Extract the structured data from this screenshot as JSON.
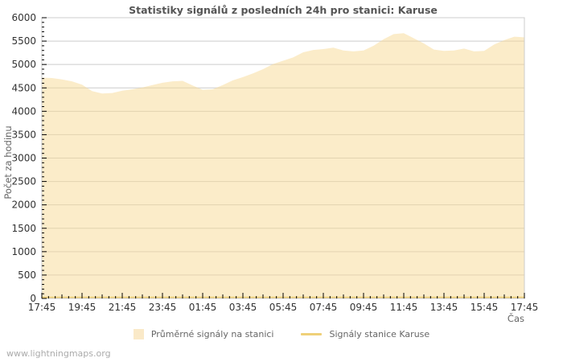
{
  "page": {
    "title": "Statistiky signálů z posledních 24h pro stanici: Karuse",
    "watermark": "www.lightningmaps.org"
  },
  "legend": {
    "items": [
      {
        "label": "Průměrné signály na stanici",
        "swatch": "area-square",
        "color": "#FAE9C8"
      },
      {
        "label": "Signály stanice Karuse",
        "swatch": "line",
        "color": "#EFD079"
      }
    ]
  },
  "chart_data": {
    "type": "area",
    "title": "Statistiky signálů z posledních 24h pro stanici: Karuse",
    "xlabel": "Čas",
    "ylabel": "Počet za hodinu",
    "ylim": [
      0,
      6000
    ],
    "y_tick_step": 500,
    "y_minor_step": 100,
    "y_tick_labels": [
      "0",
      "500",
      "1000",
      "1500",
      "2000",
      "2500",
      "3000",
      "3500",
      "4000",
      "4500",
      "5000",
      "5500",
      "6000"
    ],
    "x_hours_span": 24,
    "x_label_every_hours": 2,
    "x_minor_ticks_per_hour": 3,
    "x_tick_labels": [
      "17:45",
      "19:45",
      "21:45",
      "23:45",
      "01:45",
      "03:45",
      "05:45",
      "07:45",
      "09:45",
      "11:45",
      "13:45",
      "15:45",
      "17:45"
    ],
    "grid": true,
    "legend_position": "bottom",
    "x_step_hours": 0.5,
    "series": [
      {
        "name": "Průměrné signály na stanici",
        "type": "area",
        "fill": "#F7D994",
        "fill_opacity": 0.5,
        "values": [
          4720,
          4710,
          4680,
          4640,
          4570,
          4430,
          4380,
          4390,
          4440,
          4470,
          4510,
          4560,
          4610,
          4640,
          4650,
          4550,
          4460,
          4470,
          4560,
          4660,
          4730,
          4810,
          4900,
          5010,
          5080,
          5150,
          5260,
          5310,
          5330,
          5360,
          5300,
          5280,
          5300,
          5400,
          5540,
          5650,
          5670,
          5560,
          5450,
          5320,
          5290,
          5300,
          5340,
          5280,
          5290,
          5430,
          5520,
          5595,
          5580
        ]
      },
      {
        "name": "Signály stanice Karuse",
        "type": "line",
        "color": "#EFD079",
        "stroke_width": 2.5,
        "values": [
          0,
          0,
          0,
          0,
          0,
          0,
          0,
          0,
          0,
          0,
          0,
          0,
          0,
          0,
          0,
          0,
          0,
          0,
          0,
          0,
          0,
          0,
          0,
          0,
          0,
          0,
          0,
          0,
          0,
          0,
          0,
          0,
          0,
          0,
          0,
          0,
          0,
          0,
          0,
          0,
          0,
          0,
          0,
          0,
          0,
          0,
          0,
          0,
          0
        ]
      }
    ],
    "colors": {
      "grid": "#CCCCCC",
      "border": "#CCCCCC",
      "tick": "#000000",
      "tick_label": "#333333",
      "title": "#555555",
      "axis_label": "#666666",
      "background": "#FFFFFF"
    }
  }
}
